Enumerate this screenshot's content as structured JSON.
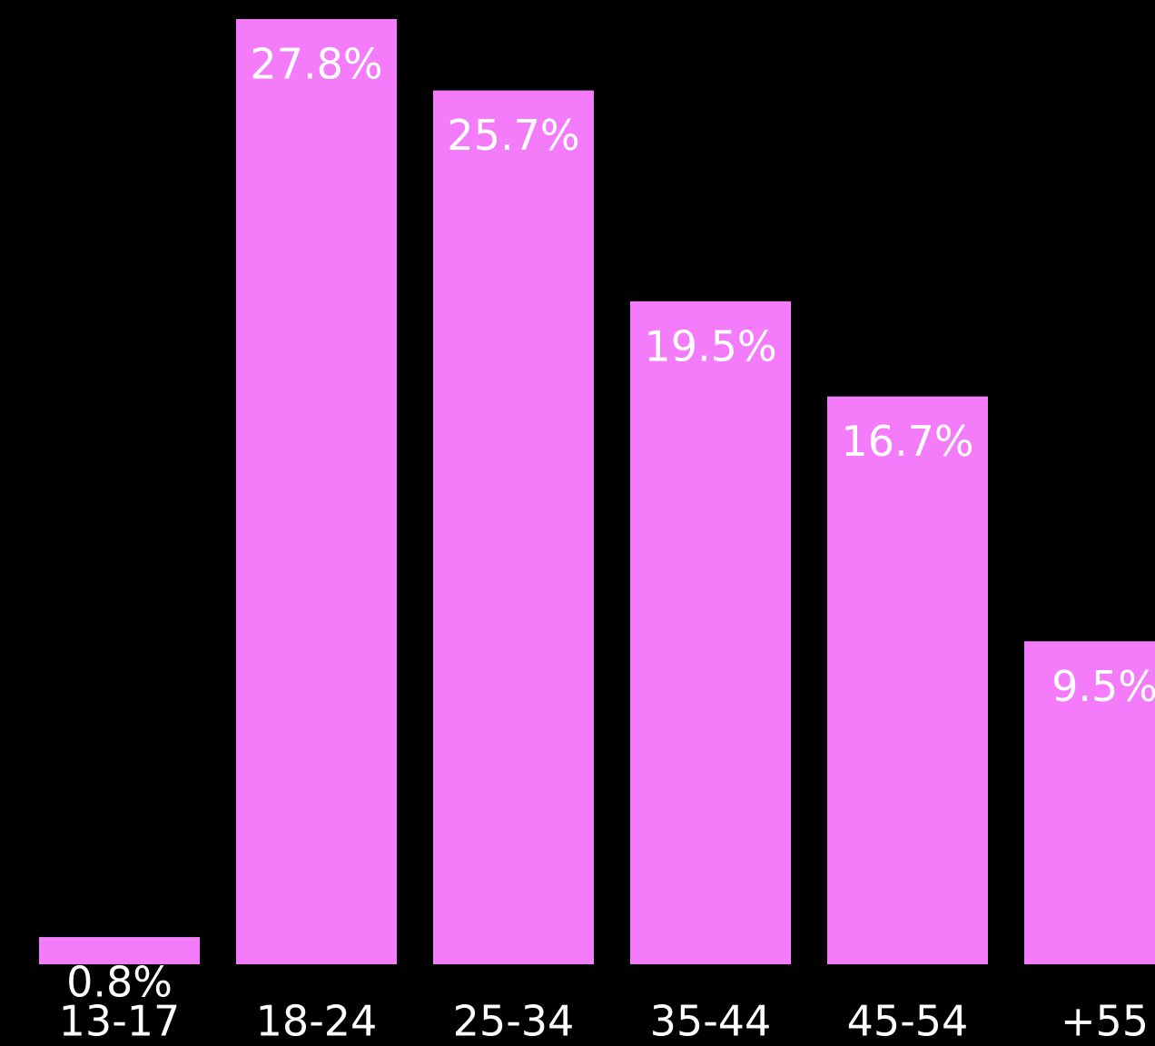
{
  "chart_data": {
    "type": "bar",
    "categories": [
      "13-17",
      "18-24",
      "25-34",
      "35-44",
      "45-54",
      "+55"
    ],
    "values": [
      0.8,
      27.8,
      25.7,
      19.5,
      16.7,
      9.5
    ],
    "value_labels": [
      "0.8%",
      "27.8%",
      "25.7%",
      "19.5%",
      "16.7%",
      "9.5%"
    ],
    "color": "#f47cfb"
  }
}
